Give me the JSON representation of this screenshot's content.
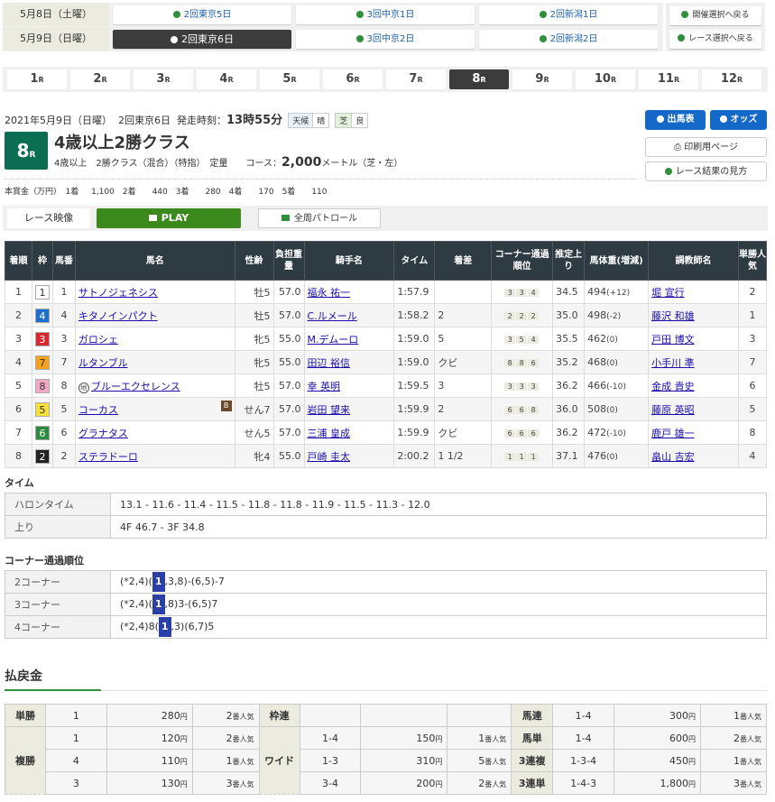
{
  "dates": [
    {
      "label": "5月8日（土曜）",
      "meets": [
        "2回東京5日",
        "3回中京1日",
        "2回新潟1日"
      ],
      "active": -1
    },
    {
      "label": "5月9日（日曜）",
      "meets": [
        "2回東京6日",
        "3回中京2日",
        "2回新潟2日"
      ],
      "active": 0
    }
  ],
  "back_buttons": [
    "開催選択へ戻る",
    "レース選択へ戻る"
  ],
  "races": [
    "1",
    "2",
    "3",
    "4",
    "5",
    "6",
    "7",
    "8",
    "9",
    "10",
    "11",
    "12"
  ],
  "race_suffix": "R",
  "active_race": "8",
  "info": {
    "date": "2021年5月9日（日曜）",
    "meet": "2回東京6日",
    "start_label": "発走時刻：",
    "start_time": "13時55分",
    "weather_label": "天候",
    "weather": "晴",
    "track_label": "芝",
    "track": "良"
  },
  "race": {
    "num": "8",
    "name": "4歳以上2勝クラス",
    "sub": "4歳以上　2勝クラス（混合）（特指）　定量　　コース：",
    "distance": "2,000",
    "dist_unit": "メートル（芝・左）"
  },
  "prize": "本賞金（万円）　1着　 1,100　2着　　440　3着　　280　4着　　170　5着　　110",
  "buttons": {
    "entries": "出馬表",
    "odds": "オッズ",
    "print": "印刷用ページ",
    "guide": "レース結果の見方"
  },
  "video": {
    "label": "レース映像",
    "play": "PLAY",
    "patrol": "全周パトロール"
  },
  "colors": {
    "accent": "#0b6e53",
    "blue": "#1468c8",
    "play": "#3c8a1e",
    "header": "#2f3b42"
  },
  "results": {
    "headers": [
      "着順",
      "枠",
      "馬番",
      "馬名",
      "性齢",
      "負担重量",
      "騎手名",
      "タイム",
      "着差",
      "コーナー通過順位",
      "推定上り",
      "馬体重(増減)",
      "調教師名",
      "単勝人気"
    ],
    "rows": [
      {
        "pos": "1",
        "waku": "1",
        "num": "1",
        "horse": "サトノジェネシス",
        "sex": "牡5",
        "wt": "57.0",
        "jockey": "福永 祐一",
        "time": "1:57.9",
        "margin": "",
        "corner": [
          "3",
          "3",
          "4"
        ],
        "last": "34.5",
        "bw": "494",
        "bwd": "(+12)",
        "trainer": "堀 宣行",
        "pop": "2"
      },
      {
        "pos": "2",
        "waku": "4",
        "num": "4",
        "horse": "キタノインパクト",
        "sex": "牡5",
        "wt": "57.0",
        "jockey": "C.ルメール",
        "time": "1:58.2",
        "margin": "2",
        "corner": [
          "2",
          "2",
          "2"
        ],
        "last": "35.0",
        "bw": "498",
        "bwd": "(-2)",
        "trainer": "藤沢 和雄",
        "pop": "1"
      },
      {
        "pos": "3",
        "waku": "3",
        "num": "3",
        "horse": "ガロシェ",
        "sex": "牝5",
        "wt": "55.0",
        "jockey": "M.デムーロ",
        "time": "1:59.0",
        "margin": "5",
        "corner": [
          "3",
          "5",
          "4"
        ],
        "last": "35.5",
        "bw": "462",
        "bwd": "(0)",
        "trainer": "戸田 博文",
        "pop": "3"
      },
      {
        "pos": "4",
        "waku": "7",
        "num": "7",
        "horse": "ルタンブル",
        "sex": "牝5",
        "wt": "55.0",
        "jockey": "田辺 裕信",
        "time": "1:59.0",
        "margin": "クビ",
        "corner": [
          "8",
          "8",
          "6"
        ],
        "last": "35.2",
        "bw": "468",
        "bwd": "(0)",
        "trainer": "小手川 準",
        "pop": "7"
      },
      {
        "pos": "5",
        "waku": "8",
        "num": "8",
        "mark": "地",
        "horse": "ブルーエクセレンス",
        "sex": "牡5",
        "wt": "57.0",
        "jockey": "幸 英明",
        "time": "1:59.5",
        "margin": "3",
        "corner": [
          "3",
          "3",
          "3"
        ],
        "last": "36.2",
        "bw": "466",
        "bwd": "(-10)",
        "trainer": "金成 貴史",
        "pop": "6"
      },
      {
        "pos": "6",
        "waku": "5",
        "num": "5",
        "horse": "コーカス",
        "blinker": "B",
        "sex": "せん7",
        "wt": "57.0",
        "jockey": "岩田 望来",
        "time": "1:59.9",
        "margin": "2",
        "corner": [
          "6",
          "6",
          "8"
        ],
        "last": "36.0",
        "bw": "508",
        "bwd": "(0)",
        "trainer": "藤原 英昭",
        "pop": "5"
      },
      {
        "pos": "7",
        "waku": "6",
        "num": "6",
        "horse": "グラナタス",
        "sex": "せん5",
        "wt": "57.0",
        "jockey": "三浦 皇成",
        "time": "1:59.9",
        "margin": "クビ",
        "corner": [
          "6",
          "6",
          "6"
        ],
        "last": "36.2",
        "bw": "472",
        "bwd": "(-10)",
        "trainer": "鹿戸 雄一",
        "pop": "8"
      },
      {
        "pos": "8",
        "waku": "2",
        "num": "2",
        "horse": "ステラドーロ",
        "sex": "牝4",
        "wt": "55.0",
        "jockey": "戸崎 圭太",
        "time": "2:00.2",
        "margin": "1 1/2",
        "corner": [
          "1",
          "1",
          "1"
        ],
        "last": "37.1",
        "bw": "476",
        "bwd": "(0)",
        "trainer": "畠山 吉宏",
        "pop": "4"
      }
    ]
  },
  "waku_colors": {
    "1": [
      "#ffffff",
      "#333"
    ],
    "2": [
      "#222222",
      "#fff"
    ],
    "3": [
      "#d7282f",
      "#fff"
    ],
    "4": [
      "#1e6fd0",
      "#fff"
    ],
    "5": [
      "#f5e13a",
      "#333"
    ],
    "6": [
      "#2d8a3e",
      "#fff"
    ],
    "7": [
      "#f7a21d",
      "#333"
    ],
    "8": [
      "#f3a9c6",
      "#333"
    ]
  },
  "time": {
    "title": "タイム",
    "rows": [
      {
        "label": "ハロンタイム",
        "value": "13.1 - 11.6 - 11.4 - 11.5 - 11.8 - 11.8 - 11.9 - 11.5 - 11.3 - 12.0"
      },
      {
        "label": "上り",
        "value": "4F 46.7 - 3F 34.8"
      }
    ]
  },
  "corners": {
    "title": "コーナー通過順位",
    "rows": [
      {
        "label": "2コーナー",
        "pre": "(*2,4)(",
        "hl": "1",
        "post": ",3,8)-(6,5)-7"
      },
      {
        "label": "3コーナー",
        "pre": "(*2,4)(",
        "hl": "1",
        "post": ",8)3-(6,5)7"
      },
      {
        "label": "4コーナー",
        "pre": "(*2,4)8(",
        "hl": "1",
        "post": ",3)(6,7)5"
      }
    ]
  },
  "payout": {
    "title": "払戻金",
    "yen": "円",
    "pop_suffix": "番人気",
    "tansho": {
      "label": "単勝",
      "num": "1",
      "pay": "280",
      "pop": "2"
    },
    "fukusho": {
      "label": "複勝",
      "rows": [
        {
          "num": "1",
          "pay": "120",
          "pop": "2"
        },
        {
          "num": "4",
          "pay": "110",
          "pop": "1"
        },
        {
          "num": "3",
          "pay": "130",
          "pop": "3"
        }
      ]
    },
    "wakuren": {
      "label": "枠連"
    },
    "wide": {
      "label": "ワイド",
      "rows": [
        {
          "num": "1-4",
          "pay": "150",
          "pop": "1"
        },
        {
          "num": "1-3",
          "pay": "310",
          "pop": "5"
        },
        {
          "num": "3-4",
          "pay": "200",
          "pop": "2"
        }
      ]
    },
    "others": [
      {
        "label": "馬連",
        "num": "1-4",
        "pay": "300",
        "pop": "1"
      },
      {
        "label": "馬単",
        "num": "1-4",
        "pay": "600",
        "pop": "2"
      },
      {
        "label": "3連複",
        "num": "1-3-4",
        "pay": "450",
        "pop": "1"
      },
      {
        "label": "3連単",
        "num": "1-4-3",
        "pay": "1,800",
        "pop": "3"
      }
    ]
  }
}
